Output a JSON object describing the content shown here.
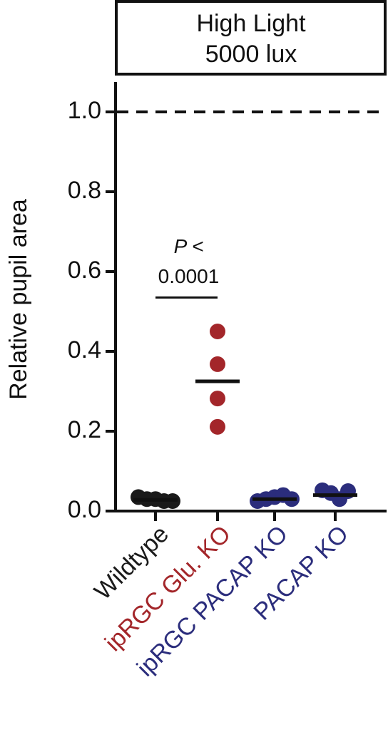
{
  "chart_data": {
    "type": "dot",
    "title": [
      "High Light",
      "5000 lux"
    ],
    "y_label": "Relative pupil area",
    "categories": [
      "Wildtype",
      "ipRGC Glu. KO",
      "ipRGC PACAP KO",
      "PACAP KO"
    ],
    "category_colors": [
      "#1a1a1a",
      "#a3262a",
      "#2b2d7c",
      "#2b2d7c"
    ],
    "points": [
      [
        0.035,
        0.03,
        0.03,
        0.025,
        0.025
      ],
      [
        0.45,
        0.368,
        0.282,
        0.211
      ],
      [
        0.025,
        0.03,
        0.035,
        0.04,
        0.03
      ],
      [
        0.052,
        0.045,
        0.03,
        0.05
      ]
    ],
    "means": [
      0.028,
      0.325,
      0.03,
      0.04
    ],
    "reference_line": 1.0,
    "annotation": {
      "text": [
        "P <",
        "0.0001"
      ],
      "between": [
        0,
        1
      ],
      "level": 0.535
    },
    "ylim": [
      0,
      1.075
    ],
    "yticks": [
      {
        "value": 0,
        "label": "0.0"
      },
      0.2,
      0.4,
      0.6,
      0.8,
      {
        "value": 1,
        "label": "1.0"
      }
    ]
  }
}
